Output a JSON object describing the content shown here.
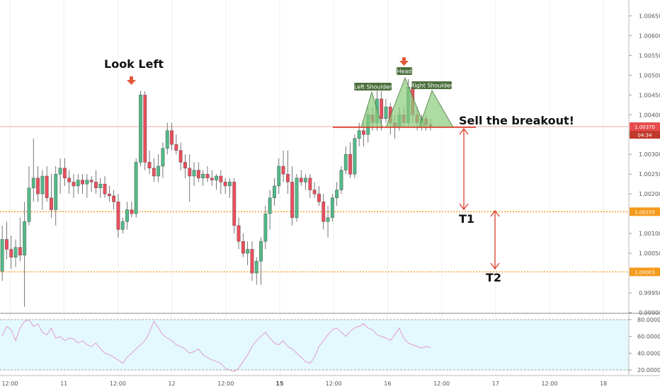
{
  "chart_data": {
    "type": "candlestick",
    "price_axis": {
      "ylim": [
        0.999,
        1.0069
      ],
      "ticks": [
        "1.00650",
        "1.00600",
        "1.00550",
        "1.00500",
        "1.00450",
        "1.00400",
        "1.00350",
        "1.00300",
        "1.00250",
        "1.00200",
        "1.00150",
        "1.00100",
        "1.00050",
        "1.00000",
        "0.99950",
        "0.99900"
      ]
    },
    "time_axis": {
      "ticks": [
        "12:00",
        "11",
        "12:00",
        "12",
        "12:00",
        "15",
        "12:00",
        "16",
        "12:00",
        "17",
        "12:00",
        "18"
      ],
      "bold_ticks": [
        "15"
      ]
    },
    "candles": [
      {
        "o": 1.00005,
        "h": 1.0012,
        "l": 0.9998,
        "c": 1.00085
      },
      {
        "o": 1.00085,
        "h": 1.0013,
        "l": 1.00035,
        "c": 1.0006
      },
      {
        "o": 1.0006,
        "h": 1.00095,
        "l": 1.0001,
        "c": 1.0004
      },
      {
        "o": 1.0004,
        "h": 1.00085,
        "l": 1.00015,
        "c": 1.00065
      },
      {
        "o": 1.00065,
        "h": 1.0014,
        "l": 1.0003,
        "c": 1.00045
      },
      {
        "o": 1.00045,
        "h": 1.0018,
        "l": 0.99915,
        "c": 1.0013
      },
      {
        "o": 1.0013,
        "h": 1.0027,
        "l": 1.0012,
        "c": 1.00215
      },
      {
        "o": 1.00215,
        "h": 1.0034,
        "l": 1.0018,
        "c": 1.0024
      },
      {
        "o": 1.0024,
        "h": 1.0027,
        "l": 1.0018,
        "c": 1.002
      },
      {
        "o": 1.002,
        "h": 1.0026,
        "l": 1.0016,
        "c": 1.00245
      },
      {
        "o": 1.00245,
        "h": 1.0027,
        "l": 1.0018,
        "c": 1.0019
      },
      {
        "o": 1.0019,
        "h": 1.0025,
        "l": 1.0014,
        "c": 1.0016
      },
      {
        "o": 1.0016,
        "h": 1.0027,
        "l": 1.0012,
        "c": 1.0025
      },
      {
        "o": 1.0025,
        "h": 1.0029,
        "l": 1.002,
        "c": 1.00265
      },
      {
        "o": 1.00265,
        "h": 1.0029,
        "l": 1.0022,
        "c": 1.0024
      },
      {
        "o": 1.0024,
        "h": 1.0026,
        "l": 1.002,
        "c": 1.0023
      },
      {
        "o": 1.0023,
        "h": 1.0025,
        "l": 1.0019,
        "c": 1.0022
      },
      {
        "o": 1.0022,
        "h": 1.0025,
        "l": 1.002,
        "c": 1.00235
      },
      {
        "o": 1.00235,
        "h": 1.0025,
        "l": 1.002,
        "c": 1.00225
      },
      {
        "o": 1.00225,
        "h": 1.0025,
        "l": 1.0019,
        "c": 1.00235
      },
      {
        "o": 1.00235,
        "h": 1.00245,
        "l": 1.00205,
        "c": 1.0023
      },
      {
        "o": 1.0023,
        "h": 1.0026,
        "l": 1.002,
        "c": 1.00215
      },
      {
        "o": 1.00215,
        "h": 1.0024,
        "l": 1.0019,
        "c": 1.00225
      },
      {
        "o": 1.00225,
        "h": 1.00245,
        "l": 1.0019,
        "c": 1.002
      },
      {
        "o": 1.002,
        "h": 1.0022,
        "l": 1.0018,
        "c": 1.00195
      },
      {
        "o": 1.00195,
        "h": 1.0021,
        "l": 1.0016,
        "c": 1.0018
      },
      {
        "o": 1.0018,
        "h": 1.002,
        "l": 1.0009,
        "c": 1.0011
      },
      {
        "o": 1.0011,
        "h": 1.0014,
        "l": 1.001,
        "c": 1.0013
      },
      {
        "o": 1.0013,
        "h": 1.0018,
        "l": 1.0011,
        "c": 1.0016
      },
      {
        "o": 1.0016,
        "h": 1.0018,
        "l": 1.0014,
        "c": 1.0015
      },
      {
        "o": 1.0015,
        "h": 1.0029,
        "l": 1.0014,
        "c": 1.0028
      },
      {
        "o": 1.0028,
        "h": 1.0046,
        "l": 1.0027,
        "c": 1.0045
      },
      {
        "o": 1.0045,
        "h": 1.0046,
        "l": 1.0026,
        "c": 1.0028
      },
      {
        "o": 1.0028,
        "h": 1.0031,
        "l": 1.0025,
        "c": 1.00265
      },
      {
        "o": 1.00265,
        "h": 1.0029,
        "l": 1.0023,
        "c": 1.00245
      },
      {
        "o": 1.00245,
        "h": 1.003,
        "l": 1.0023,
        "c": 1.0027
      },
      {
        "o": 1.0027,
        "h": 1.0033,
        "l": 1.0024,
        "c": 1.00315
      },
      {
        "o": 1.00315,
        "h": 1.0038,
        "l": 1.003,
        "c": 1.0036
      },
      {
        "o": 1.0036,
        "h": 1.0038,
        "l": 1.0031,
        "c": 1.00325
      },
      {
        "o": 1.00325,
        "h": 1.0035,
        "l": 1.003,
        "c": 1.0031
      },
      {
        "o": 1.0031,
        "h": 1.0033,
        "l": 1.0026,
        "c": 1.0028
      },
      {
        "o": 1.0028,
        "h": 1.003,
        "l": 1.0024,
        "c": 1.00265
      },
      {
        "o": 1.00265,
        "h": 1.003,
        "l": 1.0018,
        "c": 1.00245
      },
      {
        "o": 1.00245,
        "h": 1.0028,
        "l": 1.0022,
        "c": 1.0026
      },
      {
        "o": 1.0026,
        "h": 1.0028,
        "l": 1.0023,
        "c": 1.0024
      },
      {
        "o": 1.0024,
        "h": 1.0026,
        "l": 1.0022,
        "c": 1.0025
      },
      {
        "o": 1.0025,
        "h": 1.0027,
        "l": 1.0023,
        "c": 1.0024
      },
      {
        "o": 1.0024,
        "h": 1.0026,
        "l": 1.0022,
        "c": 1.00235
      },
      {
        "o": 1.00235,
        "h": 1.0025,
        "l": 1.0021,
        "c": 1.00245
      },
      {
        "o": 1.00245,
        "h": 1.0026,
        "l": 1.002,
        "c": 1.0023
      },
      {
        "o": 1.0023,
        "h": 1.0024,
        "l": 1.002,
        "c": 1.0022
      },
      {
        "o": 1.0022,
        "h": 1.0024,
        "l": 1.0019,
        "c": 1.0023
      },
      {
        "o": 1.0023,
        "h": 1.0024,
        "l": 1.001,
        "c": 1.0012
      },
      {
        "o": 1.0012,
        "h": 1.0014,
        "l": 1.0006,
        "c": 1.0008
      },
      {
        "o": 1.0008,
        "h": 1.001,
        "l": 1.0004,
        "c": 1.0005
      },
      {
        "o": 1.0005,
        "h": 1.0008,
        "l": 1.0002,
        "c": 1.0006
      },
      {
        "o": 1.0006,
        "h": 1.0008,
        "l": 0.9998,
        "c": 1.0
      },
      {
        "o": 1.0,
        "h": 1.0004,
        "l": 0.9997,
        "c": 1.0003
      },
      {
        "o": 1.0003,
        "h": 1.0009,
        "l": 0.9997,
        "c": 1.0008
      },
      {
        "o": 1.0008,
        "h": 1.0017,
        "l": 1.0006,
        "c": 1.0015
      },
      {
        "o": 1.0015,
        "h": 1.0021,
        "l": 1.0011,
        "c": 1.0019
      },
      {
        "o": 1.0019,
        "h": 1.0024,
        "l": 1.0017,
        "c": 1.0022
      },
      {
        "o": 1.0022,
        "h": 1.0029,
        "l": 1.002,
        "c": 1.0027
      },
      {
        "o": 1.0027,
        "h": 1.0031,
        "l": 1.0023,
        "c": 1.0025
      },
      {
        "o": 1.0025,
        "h": 1.0031,
        "l": 1.002,
        "c": 1.0023
      },
      {
        "o": 1.0023,
        "h": 1.0027,
        "l": 1.0012,
        "c": 1.0014
      },
      {
        "o": 1.0014,
        "h": 1.0025,
        "l": 1.0013,
        "c": 1.0024
      },
      {
        "o": 1.0024,
        "h": 1.0026,
        "l": 1.0022,
        "c": 1.0023
      },
      {
        "o": 1.0023,
        "h": 1.0025,
        "l": 1.0021,
        "c": 1.0024
      },
      {
        "o": 1.0024,
        "h": 1.0025,
        "l": 1.0019,
        "c": 1.0021
      },
      {
        "o": 1.0021,
        "h": 1.0023,
        "l": 1.0019,
        "c": 1.002
      },
      {
        "o": 1.002,
        "h": 1.0022,
        "l": 1.0017,
        "c": 1.0018
      },
      {
        "o": 1.0018,
        "h": 1.002,
        "l": 1.0011,
        "c": 1.0013
      },
      {
        "o": 1.0013,
        "h": 1.0017,
        "l": 1.0009,
        "c": 1.0014
      },
      {
        "o": 1.0014,
        "h": 1.002,
        "l": 1.0013,
        "c": 1.0019
      },
      {
        "o": 1.0019,
        "h": 1.0023,
        "l": 1.0017,
        "c": 1.0021
      },
      {
        "o": 1.0021,
        "h": 1.0027,
        "l": 1.002,
        "c": 1.0026
      },
      {
        "o": 1.0026,
        "h": 1.0032,
        "l": 1.0025,
        "c": 1.003
      },
      {
        "o": 1.003,
        "h": 1.0033,
        "l": 1.0024,
        "c": 1.0025
      },
      {
        "o": 1.0025,
        "h": 1.0035,
        "l": 1.0024,
        "c": 1.0034
      },
      {
        "o": 1.0034,
        "h": 1.0038,
        "l": 1.0032,
        "c": 1.0036
      },
      {
        "o": 1.0036,
        "h": 1.0038,
        "l": 1.0032,
        "c": 1.0035
      },
      {
        "o": 1.0035,
        "h": 1.0042,
        "l": 1.0033,
        "c": 1.004
      },
      {
        "o": 1.004,
        "h": 1.0042,
        "l": 1.0036,
        "c": 1.0038
      },
      {
        "o": 1.0038,
        "h": 1.0046,
        "l": 1.0036,
        "c": 1.0044
      },
      {
        "o": 1.0044,
        "h": 1.0046,
        "l": 1.0036,
        "c": 1.0039
      },
      {
        "o": 1.0039,
        "h": 1.0044,
        "l": 1.0038,
        "c": 1.0042
      },
      {
        "o": 1.0042,
        "h": 1.0043,
        "l": 1.0035,
        "c": 1.0038
      },
      {
        "o": 1.0038,
        "h": 1.004,
        "l": 1.0034,
        "c": 1.0037
      },
      {
        "o": 1.0037,
        "h": 1.0042,
        "l": 1.0036,
        "c": 1.004
      },
      {
        "o": 1.004,
        "h": 1.0042,
        "l": 1.0037,
        "c": 1.0038
      },
      {
        "o": 1.0038,
        "h": 1.0049,
        "l": 1.0037,
        "c": 1.0047
      },
      {
        "o": 1.0047,
        "h": 1.0048,
        "l": 1.0038,
        "c": 1.004
      },
      {
        "o": 1.004,
        "h": 1.0042,
        "l": 1.0036,
        "c": 1.0038
      },
      {
        "o": 1.0038,
        "h": 1.004,
        "l": 1.0036,
        "c": 1.0039
      },
      {
        "o": 1.0039,
        "h": 1.004,
        "l": 1.0036,
        "c": 1.00375
      },
      {
        "o": 1.00375,
        "h": 1.0039,
        "l": 1.0036,
        "c": 1.0037
      }
    ],
    "rsi": {
      "ylim": [
        15,
        85
      ],
      "ticks": [
        "80.0000",
        "60.0000",
        "40.0000",
        "20.0000"
      ],
      "bands": [
        20,
        80
      ],
      "values": [
        60,
        72,
        68,
        55,
        70,
        78,
        80,
        72,
        75,
        65,
        62,
        70,
        58,
        60,
        55,
        58,
        57,
        52,
        55,
        50,
        48,
        52,
        45,
        40,
        38,
        35,
        32,
        28,
        35,
        40,
        45,
        50,
        55,
        65,
        78,
        70,
        62,
        58,
        55,
        50,
        48,
        45,
        40,
        42,
        45,
        38,
        35,
        32,
        30,
        28,
        22,
        20,
        18,
        22,
        30,
        38,
        48,
        55,
        60,
        65,
        58,
        52,
        50,
        55,
        48,
        45,
        40,
        35,
        30,
        28,
        35,
        48,
        55,
        62,
        68,
        70,
        65,
        60,
        66,
        70,
        72,
        75,
        70,
        68,
        62,
        60,
        58,
        55,
        62,
        70,
        58,
        52,
        50,
        48,
        46,
        48,
        47
      ]
    },
    "horizontal_lines": [
      {
        "price": 1.0037,
        "label": "1.00370",
        "color": "#e8a8a8"
      },
      {
        "price": 1.00155,
        "label": "1.00155",
        "color": "#f59a1b"
      },
      {
        "price": 1.00003,
        "label": "1.00003",
        "color": "#f59a1b"
      }
    ],
    "countdown": "04:34",
    "annotations": {
      "look_left": "Look Left",
      "head": "Head",
      "left_shoulder": "Left Shoulder",
      "right_shoulder": "Right Shoulder",
      "sell": "Sell the breakout!",
      "t1": "T1",
      "t2": "T2"
    },
    "colors": {
      "bull": "#53b987",
      "bear": "#eb4d5c",
      "rsi_line": "#e39bd1",
      "rsi_bg": "#e3f9fd",
      "pattern": "#8bcb7e",
      "pattern_label": "#4c6f3c",
      "arrow": "#e0301e"
    }
  }
}
